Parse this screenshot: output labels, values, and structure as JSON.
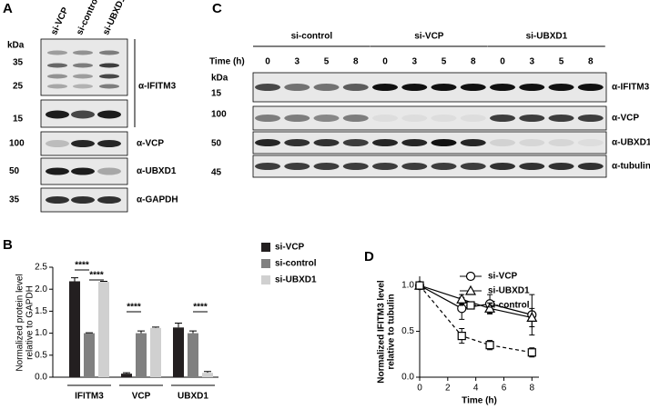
{
  "panel_labels": [
    "A",
    "B",
    "C",
    "D"
  ],
  "blot_a": {
    "lanes": [
      "si-VCP",
      "si-control",
      "si-UBXD1"
    ],
    "kda": "kDa",
    "ifitm3_markers": [
      35,
      25,
      15
    ],
    "ifitm3_antibody": "α-IFITM3",
    "rows": [
      {
        "marker": 100,
        "antibody": "α-VCP"
      },
      {
        "marker": 50,
        "antibody": "α-UBXD1"
      },
      {
        "marker": 35,
        "antibody": "α-GAPDH"
      }
    ]
  },
  "blot_c": {
    "groups": [
      {
        "name": "si-control",
        "times": [
          0,
          3,
          5,
          8
        ]
      },
      {
        "name": "si-VCP",
        "times": [
          0,
          3,
          5,
          8
        ]
      },
      {
        "name": "si-UBXD1",
        "times": [
          0,
          3,
          5,
          8
        ]
      }
    ],
    "time_label": "Time (h)",
    "kda": "kDa",
    "rows": [
      {
        "marker": 15,
        "antibody": "α-IFITM3"
      },
      {
        "marker": 100,
        "antibody": "α-VCP"
      },
      {
        "marker": 50,
        "antibody": "α-UBXD1"
      },
      {
        "marker": 45,
        "antibody": "α-tubulin"
      }
    ]
  },
  "chart_data": [
    {
      "type": "bar",
      "ylabel": [
        "Normalized protein level",
        "relative to GAPDH"
      ],
      "categories": [
        "IFITM3",
        "VCP",
        "UBXD1"
      ],
      "series": [
        {
          "name": "si-VCP",
          "color": "#231f20",
          "values": [
            2.18,
            0.08,
            1.13
          ],
          "errors": [
            0.08,
            0.02,
            0.1
          ]
        },
        {
          "name": "si-control",
          "color": "#808080",
          "values": [
            1.0,
            1.0,
            1.0
          ],
          "errors": [
            0.01,
            0.05,
            0.05
          ]
        },
        {
          "name": "si-UBXD1",
          "color": "#d0d0d0",
          "values": [
            2.17,
            1.12,
            0.1
          ],
          "errors": [
            0.01,
            0.02,
            0.03
          ]
        }
      ],
      "ylim": [
        0,
        2.5
      ],
      "yticks": [
        {
          "value": 0,
          "label": "0.0"
        },
        {
          "value": 0.5,
          "label": "0.5"
        },
        {
          "value": 1,
          "label": "1.0"
        },
        {
          "value": 1.5,
          "label": "1.5"
        },
        {
          "value": 2,
          "label": "2.0"
        },
        {
          "value": 2.5,
          "label": "2.5"
        }
      ],
      "significance": [
        "****",
        "****",
        "****",
        "****"
      ]
    },
    {
      "type": "line",
      "xlabel": "Time (h)",
      "ylabel": [
        "Normalized IFITM3 level",
        "relative to tubulin"
      ],
      "x": [
        0,
        3,
        5,
        8
      ],
      "series": [
        {
          "name": "si-VCP",
          "color": "#000000",
          "marker": "circle",
          "dashed": false,
          "values": [
            1.0,
            0.75,
            0.8,
            0.68
          ],
          "errors": [
            0,
            0.12,
            0.1,
            0.22
          ]
        },
        {
          "name": "si-UBXD1",
          "color": "#000000",
          "marker": "triangle",
          "dashed": false,
          "values": [
            1.0,
            0.85,
            0.75,
            0.65
          ],
          "errors": [
            0,
            0.05,
            0.06,
            0.1
          ]
        },
        {
          "name": "si-control",
          "color": "#000000",
          "marker": "square",
          "dashed": true,
          "values": [
            1.0,
            0.45,
            0.35,
            0.27
          ],
          "errors": [
            0,
            0.08,
            0.05,
            0.05
          ]
        }
      ],
      "xlim": [
        0,
        8.5
      ],
      "xticks": [
        0,
        2,
        4,
        6,
        8
      ],
      "ylim": [
        0,
        1.1
      ],
      "yticks": [
        {
          "value": 0,
          "label": "0.0"
        },
        {
          "value": 0.5,
          "label": "0.5"
        },
        {
          "value": 1,
          "label": "1.0"
        }
      ]
    }
  ]
}
